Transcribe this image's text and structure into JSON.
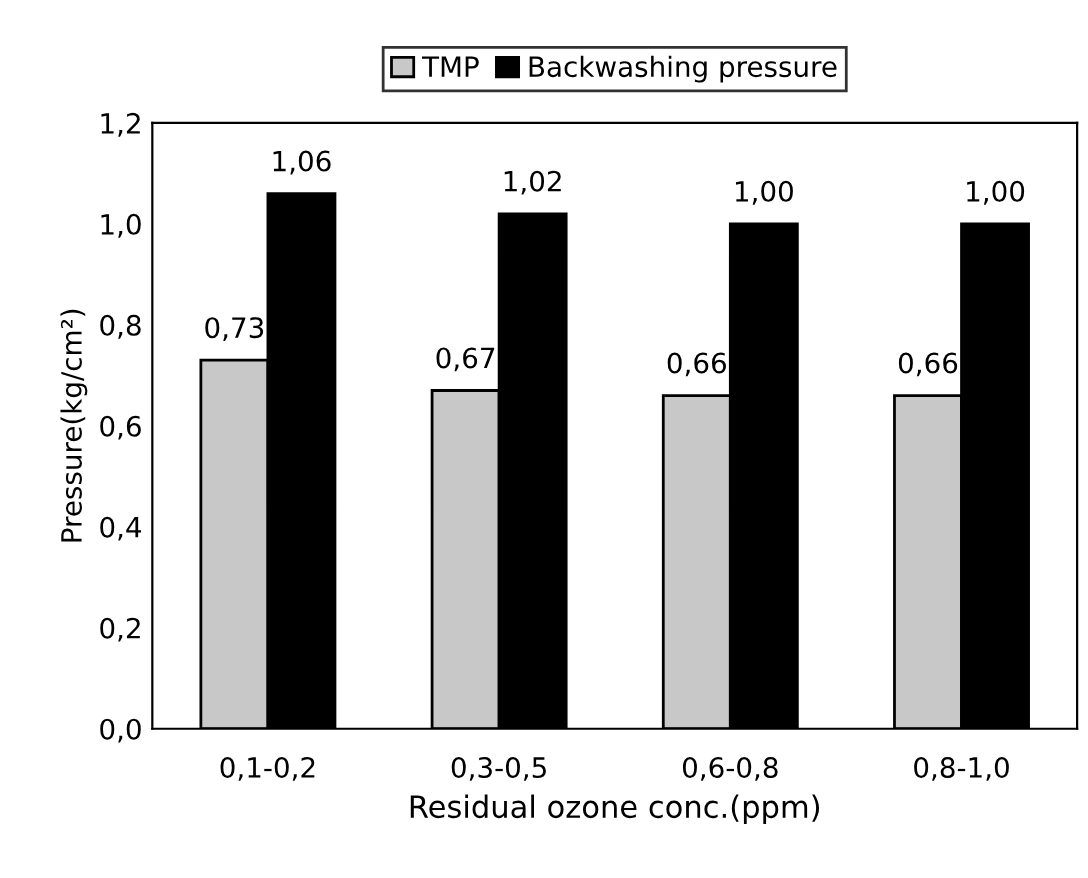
{
  "chart_data": {
    "type": "bar",
    "xlabel": "Residual ozone conc.(ppm)",
    "ylabel": "Pressure(kg/cm²)",
    "categories": [
      "0,1-0,2",
      "0,3-0,5",
      "0,6-0,8",
      "0,8-1,0"
    ],
    "series": [
      {
        "name": "TMP",
        "color": "#c8c8c8",
        "values": [
          0.73,
          0.67,
          0.66,
          0.66
        ],
        "value_labels": [
          "0,73",
          "0,67",
          "0,66",
          "0,66"
        ]
      },
      {
        "name": "Backwashing pressure",
        "color": "#000000",
        "values": [
          1.06,
          1.02,
          1.0,
          1.0
        ],
        "value_labels": [
          "1,06",
          "1,02",
          "1,00",
          "1,00"
        ]
      }
    ],
    "ylim": [
      0,
      1.2
    ],
    "yticks": [
      {
        "value": 0,
        "label": "0,0"
      },
      {
        "value": 0.2,
        "label": "0,2"
      },
      {
        "value": 0.4,
        "label": "0,4"
      },
      {
        "value": 0.6,
        "label": "0,6"
      },
      {
        "value": 0.8,
        "label": "0,8"
      },
      {
        "value": 1.0,
        "label": "1,0"
      },
      {
        "value": 1.2,
        "label": "1,2"
      }
    ],
    "grid": false,
    "legend": "top"
  }
}
